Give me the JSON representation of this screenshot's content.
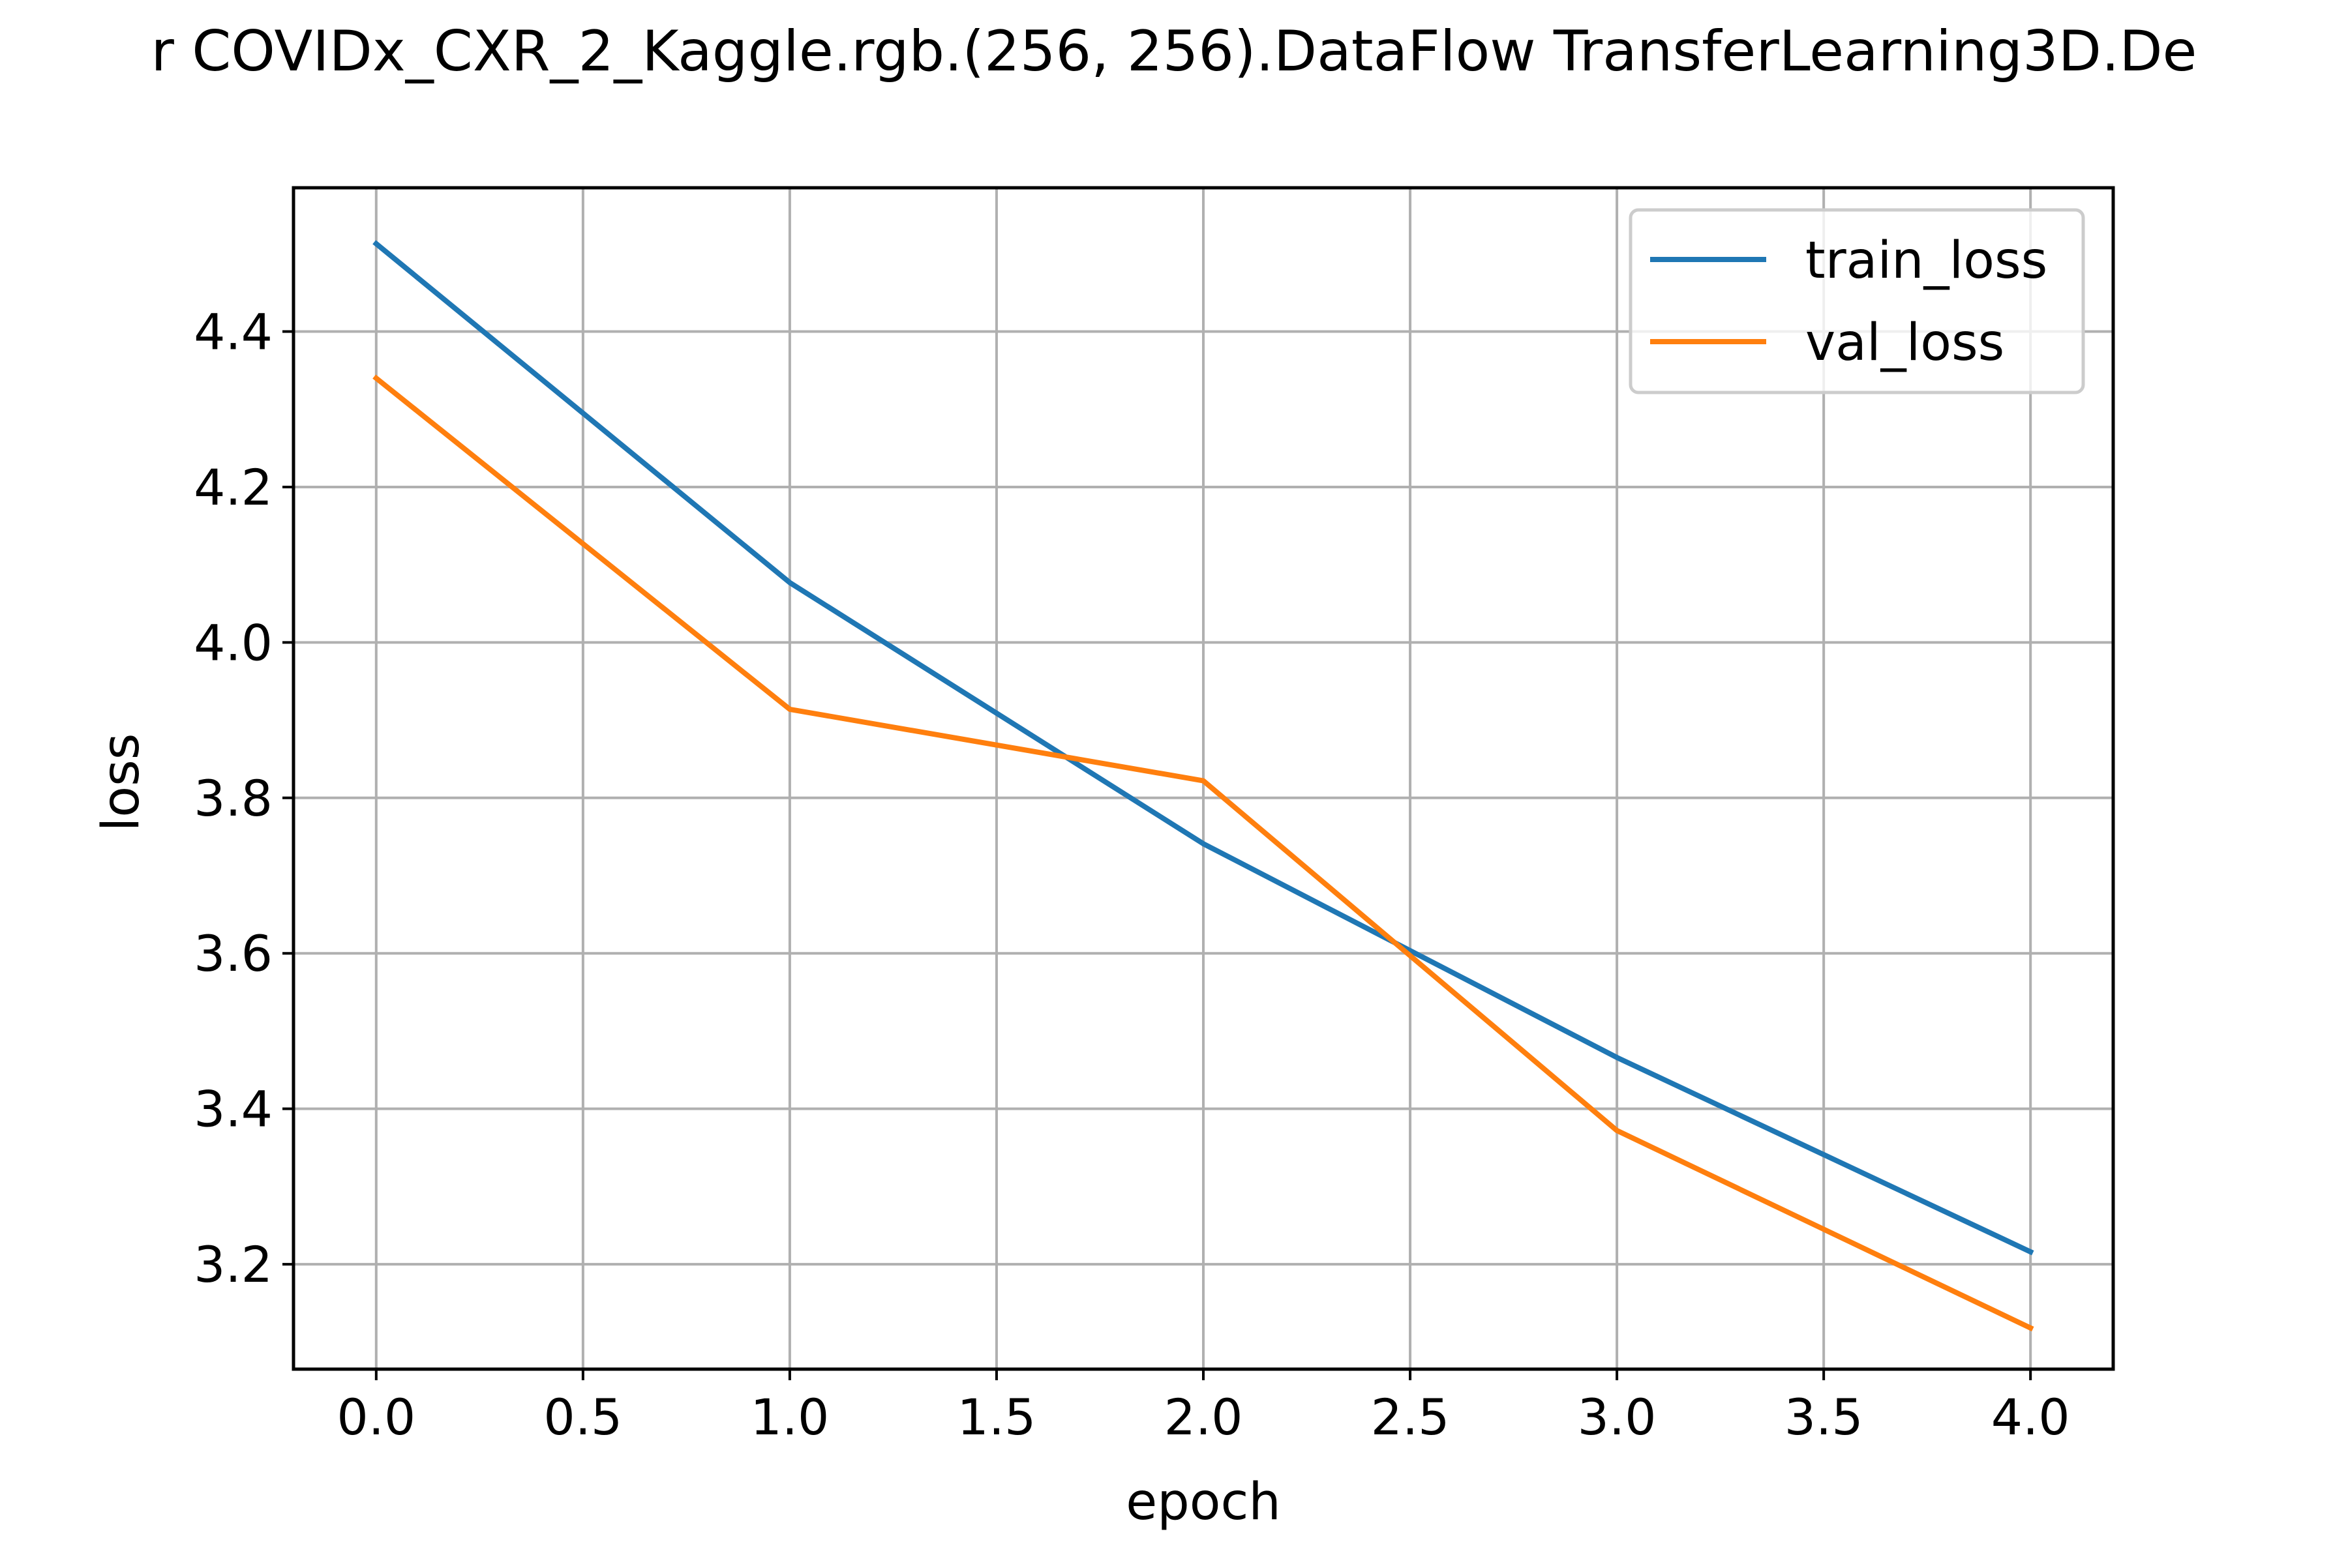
{
  "chart_data": {
    "type": "line",
    "title": "r COVIDx_CXR_2_Kaggle.rgb.(256, 256).DataFlow TransferLearning3D.De",
    "xlabel": "epoch",
    "ylabel": "loss",
    "x": [
      0,
      1,
      2,
      3,
      4
    ],
    "series": [
      {
        "name": "train_loss",
        "color": "#1f77b4",
        "values": [
          4.513,
          4.077,
          3.741,
          3.466,
          3.216
        ]
      },
      {
        "name": "val_loss",
        "color": "#ff7f0e",
        "values": [
          4.34,
          3.914,
          3.822,
          3.372,
          3.118
        ]
      }
    ],
    "xlim": [
      -0.2,
      4.2
    ],
    "ylim": [
      3.065,
      4.585
    ],
    "xticks": [
      0.0,
      0.5,
      1.0,
      1.5,
      2.0,
      2.5,
      3.0,
      3.5,
      4.0
    ],
    "xtick_labels": [
      "0.0",
      "0.5",
      "1.0",
      "1.5",
      "2.0",
      "2.5",
      "3.0",
      "3.5",
      "4.0"
    ],
    "yticks": [
      3.2,
      3.4,
      3.6,
      3.8,
      4.0,
      4.2,
      4.4
    ],
    "ytick_labels": [
      "3.2",
      "3.4",
      "3.6",
      "3.8",
      "4.0",
      "4.2",
      "4.4"
    ],
    "grid": true,
    "legend_position": "top-right",
    "grid_color": "#b0b0b0"
  }
}
